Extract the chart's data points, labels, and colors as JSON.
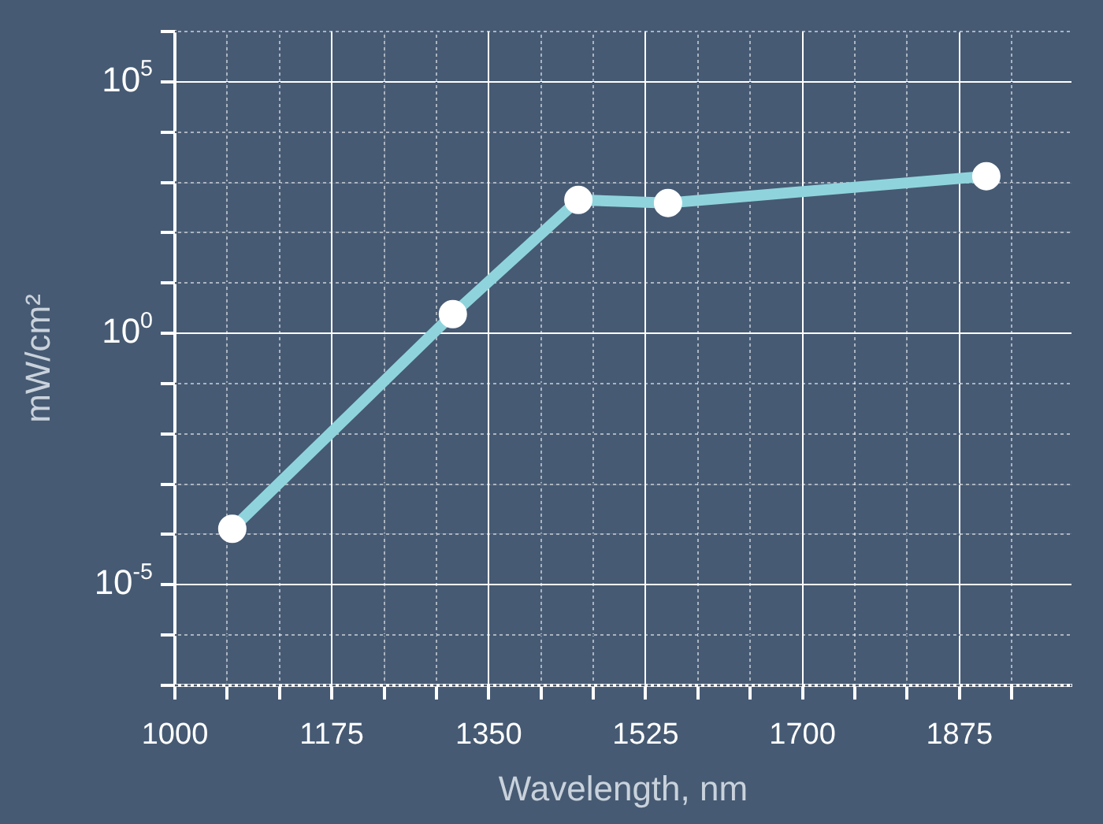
{
  "chart_data": {
    "type": "line",
    "xlabel": "Wavelength, nm",
    "ylabel": "mW/cm²",
    "log": "y",
    "grid": true,
    "legend": false,
    "marker": "circle",
    "line_style": "solid",
    "xlim": [
      1000,
      2000
    ],
    "xticks": [
      1000,
      {
        "value": 1058.33,
        "label": null
      },
      {
        "value": 1116.67,
        "label": null
      },
      1175,
      {
        "value": 1233.33,
        "label": null
      },
      {
        "value": 1291.67,
        "label": null
      },
      1350,
      {
        "value": 1408.33,
        "label": null
      },
      {
        "value": 1466.67,
        "label": null
      },
      1525,
      {
        "value": 1583.33,
        "label": null
      },
      {
        "value": 1641.67,
        "label": null
      },
      1700,
      {
        "value": 1758.33,
        "label": null
      },
      {
        "value": 1816.67,
        "label": null
      },
      1875,
      {
        "value": 1933.33,
        "label": null
      }
    ],
    "ylim": [
      1e-07,
      1000000.0
    ],
    "yticks": [
      {
        "value": 1e-07,
        "label": null
      },
      {
        "value": 1e-06,
        "label": null
      },
      {
        "value": 1e-05,
        "label": "10$^{-5}$"
      },
      {
        "value": 0.0001,
        "label": null
      },
      {
        "value": 0.001,
        "label": null
      },
      {
        "value": 0.01,
        "label": null
      },
      {
        "value": 0.1,
        "label": null
      },
      {
        "value": 1,
        "label": "10$^{0}$"
      },
      {
        "value": 10,
        "label": null
      },
      {
        "value": 100,
        "label": null
      },
      {
        "value": 1000,
        "label": null
      },
      {
        "value": 10000,
        "label": null
      },
      {
        "value": 100000,
        "label": "10$^{5}$"
      },
      {
        "value": 1000000,
        "label": null
      }
    ],
    "x": [
      1064,
      1310,
      1450,
      1550,
      1905
    ],
    "series": [
      {
        "color": "#8fd4dc",
        "values": [
          0.00013,
          2.4,
          450,
          390,
          1330
        ]
      }
    ]
  }
}
